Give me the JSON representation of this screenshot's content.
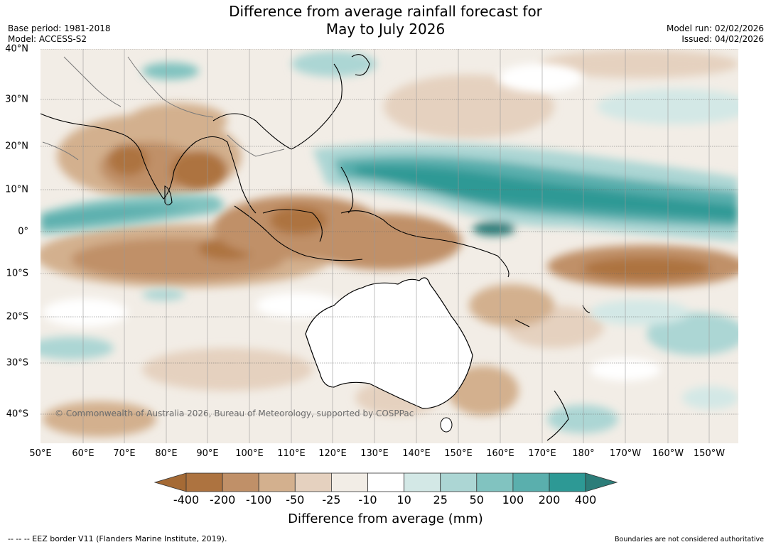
{
  "title": {
    "line1": "Difference from average rainfall forecast for",
    "line2": "May to July 2026"
  },
  "meta": {
    "base_period": "Base period: 1981-2018",
    "model": "Model: ACCESS-S2",
    "model_run": "Model run: 02/02/2026",
    "issued": "Issued: 04/02/2026"
  },
  "axes": {
    "x_ticks": [
      "50°E",
      "60°E",
      "70°E",
      "80°E",
      "90°E",
      "100°E",
      "110°E",
      "120°E",
      "130°E",
      "140°E",
      "150°E",
      "160°E",
      "170°E",
      "180°",
      "170°W",
      "160°W",
      "150°W"
    ],
    "y_ticks": [
      "40°N",
      "30°N",
      "20°N",
      "10°N",
      "0°",
      "10°S",
      "20°S",
      "30°S",
      "40°S"
    ]
  },
  "legend": {
    "title": "Difference from average (mm)",
    "labels": [
      "-400",
      "-200",
      "-100",
      "-50",
      "-25",
      "-10",
      "10",
      "25",
      "50",
      "100",
      "200",
      "400"
    ],
    "colors": [
      "#a56a35",
      "#ad7340",
      "#c09068",
      "#d3b08e",
      "#e5d1bf",
      "#f2ede6",
      "#ffffff",
      "#d3e8e6",
      "#acd6d4",
      "#81c3c0",
      "#5aafad",
      "#2d9995",
      "#2c7d79"
    ]
  },
  "copyright": "© Commonwealth of Australia 2026, Bureau of Meteorology, supported by COSPPac",
  "footer": {
    "left": "--  --  -- EEZ border V11 (Flanders Marine Institute, 2019).",
    "right": "Boundaries are not considered authoritative"
  }
}
